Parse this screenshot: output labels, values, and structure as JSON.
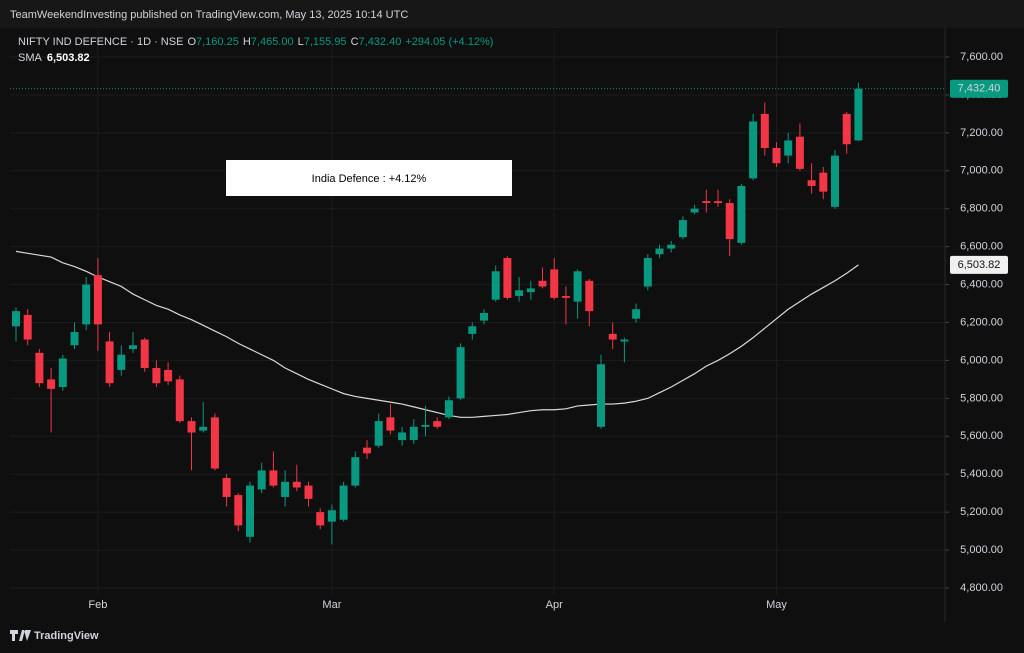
{
  "chart_data": {
    "type": "candlestick",
    "header": "TeamWeekendInvesting published on TradingView.com, May 13, 2025 10:14 UTC",
    "legend": {
      "symbol": "NIFTY IND DEFENCE · 1D · NSE",
      "o": "O",
      "open": "7,160.25",
      "h": "H",
      "high": "7,465.00",
      "l": "L",
      "low": "7,155.95",
      "c": "C",
      "close": "7,432.40",
      "change": "+294.05 (+4.12%)"
    },
    "annotation": "India Defence : +4.12%",
    "watermark": "TradingView",
    "up_color": "#089981",
    "down_color": "#f23645",
    "categories": [
      null,
      null,
      null,
      null,
      null,
      null,
      null,
      "Feb",
      null,
      null,
      null,
      null,
      null,
      null,
      null,
      null,
      null,
      null,
      null,
      null,
      null,
      null,
      null,
      null,
      null,
      null,
      null,
      "Mar",
      null,
      null,
      null,
      null,
      null,
      null,
      null,
      null,
      null,
      null,
      null,
      null,
      null,
      null,
      null,
      null,
      null,
      null,
      "Apr",
      null,
      null,
      null,
      null,
      null,
      null,
      null,
      null,
      null,
      null,
      null,
      null,
      null,
      null,
      null,
      null,
      null,
      null,
      "May",
      null,
      null,
      null,
      null,
      null,
      null,
      null
    ],
    "open": [
      6180,
      6240,
      6040,
      5900,
      5860,
      6080,
      6190,
      6450,
      6100,
      5950,
      6060,
      6110,
      5960,
      5950,
      5900,
      5680,
      5630,
      5700,
      5380,
      5290,
      5070,
      5320,
      5420,
      5280,
      5360,
      5340,
      5200,
      5150,
      5160,
      5340,
      5540,
      5550,
      5700,
      5580,
      5580,
      5650,
      5680,
      5700,
      5800,
      6140,
      6210,
      6320,
      6540,
      6340,
      6360,
      6420,
      6480,
      6340,
      6310,
      6420,
      5650,
      6140,
      6100,
      6220,
      6390,
      6560,
      6590,
      6650,
      6780,
      6840,
      6840,
      6830,
      6620,
      6960,
      7300,
      7120,
      7080,
      7180,
      6950,
      6990,
      6810,
      7300,
      7160.25
    ],
    "high": [
      6280,
      6270,
      6060,
      5960,
      6030,
      6200,
      6440,
      6540,
      6150,
      6080,
      6150,
      6120,
      6000,
      5990,
      5920,
      5700,
      5780,
      5720,
      5400,
      5300,
      5360,
      5460,
      5520,
      5420,
      5450,
      5360,
      5220,
      5240,
      5360,
      5520,
      5580,
      5720,
      5770,
      5650,
      5690,
      5760,
      5700,
      5810,
      6090,
      6200,
      6270,
      6500,
      6550,
      6440,
      6420,
      6490,
      6540,
      6390,
      6480,
      6430,
      6030,
      6200,
      6120,
      6300,
      6560,
      6610,
      6630,
      6760,
      6820,
      6900,
      6900,
      6850,
      6930,
      7300,
      7360,
      7150,
      7200,
      7250,
      7040,
      7020,
      7110,
      7310,
      7465
    ],
    "low": [
      6100,
      6080,
      5860,
      5620,
      5840,
      6060,
      6160,
      6050,
      5860,
      5920,
      6040,
      5940,
      5860,
      5870,
      5670,
      5420,
      5620,
      5420,
      5230,
      5100,
      5040,
      5300,
      5330,
      5230,
      5310,
      5230,
      5110,
      5030,
      5150,
      5330,
      5480,
      5540,
      5610,
      5550,
      5560,
      5600,
      5640,
      5690,
      5790,
      6110,
      6190,
      6310,
      6320,
      6310,
      6320,
      6380,
      6320,
      6190,
      6220,
      6180,
      5640,
      6060,
      5990,
      6200,
      6370,
      6540,
      6570,
      6640,
      6770,
      6780,
      6810,
      6550,
      6610,
      6950,
      7080,
      7020,
      7040,
      7000,
      6880,
      6850,
      6800,
      7090,
      7155.95
    ],
    "close": [
      6260,
      6110,
      5880,
      5850,
      6010,
      6150,
      6400,
      6190,
      5880,
      6030,
      6080,
      5960,
      5880,
      5890,
      5680,
      5620,
      5650,
      5430,
      5280,
      5130,
      5340,
      5420,
      5340,
      5360,
      5330,
      5270,
      5130,
      5210,
      5340,
      5490,
      5510,
      5680,
      5630,
      5620,
      5650,
      5660,
      5650,
      5790,
      6070,
      6180,
      6250,
      6470,
      6330,
      6370,
      6380,
      6390,
      6330,
      6330,
      6470,
      6260,
      5980,
      6110,
      6110,
      6270,
      6540,
      6590,
      6610,
      6740,
      6800,
      6830,
      6830,
      6640,
      6920,
      7260,
      7120,
      7040,
      7160,
      7010,
      6920,
      6890,
      7080,
      7140,
      7432.4
    ],
    "close_label": "7,432.40",
    "sma": {
      "name": "SMA",
      "color": "#d9d9d9",
      "value_label": "6,503.82",
      "values": [
        6575,
        6565,
        6555,
        6545,
        6515,
        6495,
        6470,
        6440,
        6415,
        6390,
        6350,
        6320,
        6290,
        6270,
        6240,
        6215,
        6185,
        6155,
        6125,
        6090,
        6060,
        6030,
        6000,
        5960,
        5930,
        5900,
        5875,
        5850,
        5825,
        5810,
        5800,
        5790,
        5780,
        5770,
        5755,
        5740,
        5725,
        5710,
        5700,
        5700,
        5705,
        5710,
        5715,
        5725,
        5735,
        5740,
        5740,
        5745,
        5760,
        5765,
        5770,
        5770,
        5775,
        5785,
        5800,
        5830,
        5860,
        5895,
        5930,
        5970,
        6000,
        6035,
        6075,
        6120,
        6170,
        6220,
        6270,
        6310,
        6350,
        6385,
        6420,
        6460,
        6503.82
      ]
    },
    "ylim": [
      4800,
      7600
    ],
    "yticks": [
      {
        "value": 4800,
        "label": "4,800.00"
      },
      {
        "value": 5000,
        "label": "5,000.00"
      },
      {
        "value": 5200,
        "label": "5,200.00"
      },
      {
        "value": 5400,
        "label": "5,400.00"
      },
      {
        "value": 5600,
        "label": "5,600.00"
      },
      {
        "value": 5800,
        "label": "5,800.00"
      },
      {
        "value": 6000,
        "label": "6,000.00"
      },
      {
        "value": 6200,
        "label": "6,200.00"
      },
      {
        "value": 6400,
        "label": "6,400.00"
      },
      {
        "value": 6600,
        "label": "6,600.00"
      },
      {
        "value": 6800,
        "label": "6,800.00"
      },
      {
        "value": 7000,
        "label": "7,000.00"
      },
      {
        "value": 7200,
        "label": "7,200.00"
      },
      {
        "value": 7400,
        "label": "7,400.00"
      },
      {
        "value": 7600,
        "label": "7,600.00"
      }
    ],
    "grid": true
  }
}
